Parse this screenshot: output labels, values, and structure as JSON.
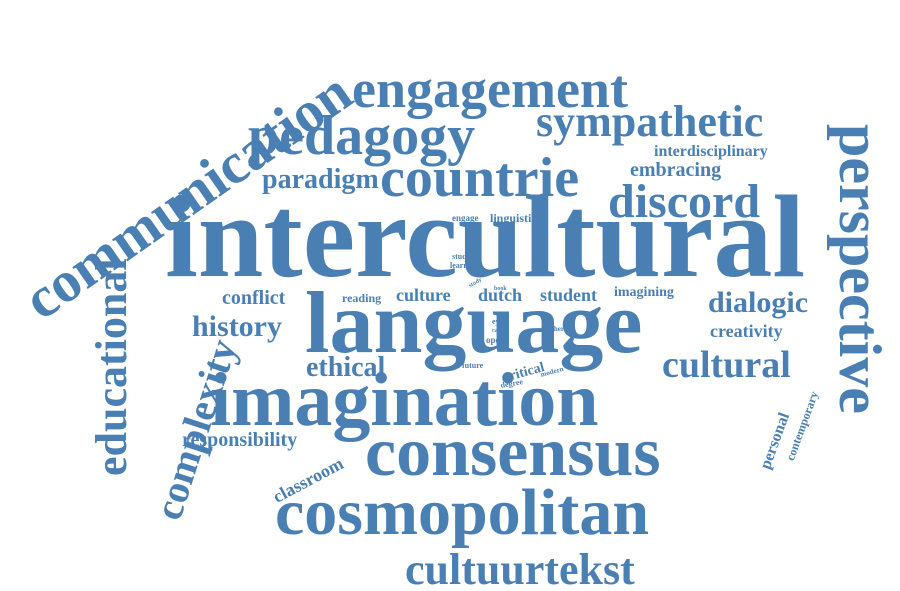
{
  "style": {
    "word_color": "#4a7fb3",
    "background": "#ffffff"
  },
  "words": {
    "intercultural": "intercultural",
    "language": "language",
    "imagination": "imagination",
    "consensus": "consensus",
    "cosmopolitan": "cosmopolitan",
    "communication": "communication",
    "engagement": "engagement",
    "pedagogy": "pedagogy",
    "sympathetic": "sympathetic",
    "countrie": "countrie",
    "discord": "discord",
    "perspective": "perspective",
    "educational": "educational",
    "complexity": "complexity",
    "cultuurtekst": "cultuurtekst",
    "cultural": "cultural",
    "history": "history",
    "paradigm": "paradigm",
    "dialogic": "dialogic",
    "ethical": "ethical",
    "responsibility": "responsibility",
    "classroom": "classroom",
    "conflict": "conflict",
    "embracing": "embracing",
    "interdisciplinary": "interdisciplinary",
    "creativity": "creativity",
    "culture": "culture",
    "dutch": "dutch",
    "student": "student",
    "imagining": "imagining",
    "reading": "reading",
    "linguistic": "linguistic",
    "engage": "engage",
    "critical": "critical",
    "personal": "personal",
    "contemporary": "contemporary",
    "studies": "studies",
    "learner": "learner",
    "study": "study",
    "book": "book",
    "eye": "eye",
    "case": "case",
    "open": "open",
    "future": "future",
    "degree": "degree",
    "modern": "modern",
    "other": "other"
  }
}
